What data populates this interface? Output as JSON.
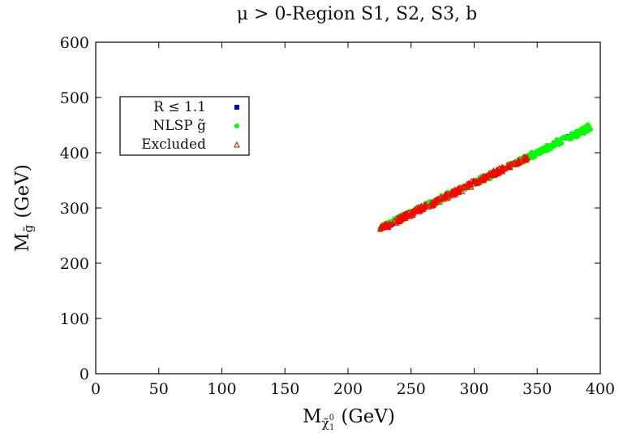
{
  "chart_data": {
    "type": "scatter",
    "title": "μ > 0-Region S1, S2, S3, b",
    "xlabel": "M",
    "xlabel_sub": "χ̃",
    "xlabel_sub_sup": "0",
    "xlabel_sub_sub": "1",
    "xlabel_unit": "(GeV)",
    "ylabel": "M",
    "ylabel_sub": "g̃",
    "ylabel_unit": "(GeV)",
    "xlim": [
      0,
      400
    ],
    "ylim": [
      0,
      600
    ],
    "xticks": [
      0,
      50,
      100,
      150,
      200,
      250,
      300,
      350,
      400
    ],
    "yticks": [
      0,
      100,
      200,
      300,
      400,
      500,
      600
    ],
    "grid": false,
    "legend_position": "upper-left",
    "series": [
      {
        "name": "R ≤ 1.1",
        "marker": "square",
        "color": "#0000ff",
        "segments": [
          [
            226,
            264
          ],
          [
            392,
            446
          ]
        ]
      },
      {
        "name": "NLSP g̃",
        "marker": "circle",
        "color": "#00ff00",
        "segments": [
          [
            226,
            264
          ],
          [
            392,
            446
          ]
        ]
      },
      {
        "name": "Excluded",
        "marker": "triangle",
        "color": "#ff0000",
        "segments": [
          [
            226,
            264
          ],
          [
            342,
            392
          ]
        ]
      }
    ]
  }
}
